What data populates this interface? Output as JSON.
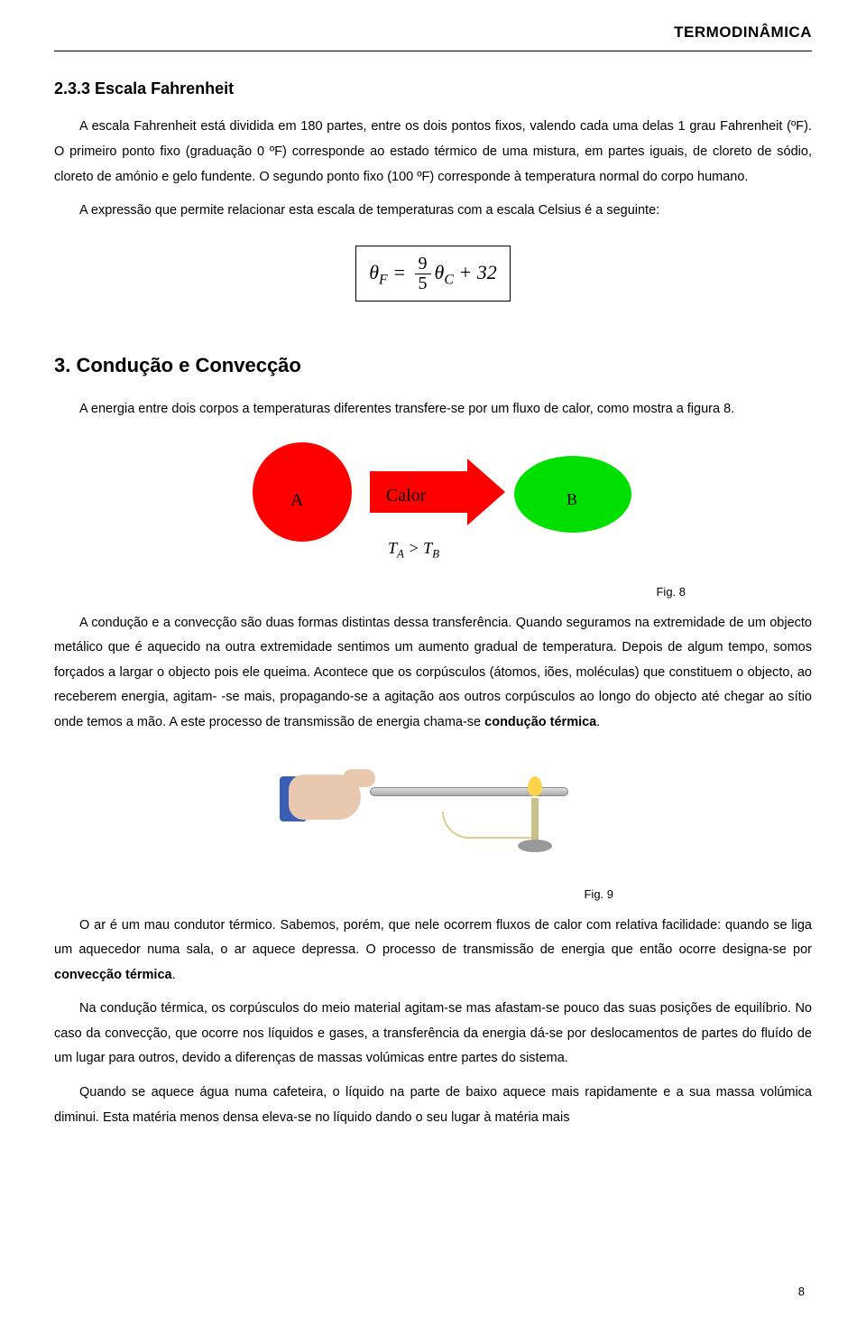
{
  "header": {
    "title": "TERMODINÂMICA"
  },
  "s233": {
    "heading": "2.3.3 Escala Fahrenheit",
    "p1": "A escala Fahrenheit está dividida em 180 partes, entre os dois pontos fixos, valendo cada uma delas 1 grau Fahrenheit (ºF). O primeiro ponto fixo (graduação 0 ºF) corresponde ao estado térmico de uma mistura, em partes iguais, de cloreto de sódio, cloreto de amónio e gelo fundente. O segundo ponto fixo (100 ºF) corresponde à temperatura normal do corpo humano.",
    "p2": "A expressão que permite relacionar esta escala de temperaturas com a escala Celsius é a seguinte:",
    "formula": {
      "lhs": "θ",
      "lhs_sub": "F",
      "eq": " = ",
      "num": "9",
      "den": "5",
      "rhs": "θ",
      "rhs_sub": "C",
      "tail": " + 32"
    }
  },
  "s3": {
    "heading": "3. Condução e Convecção",
    "p1": "A energia entre dois corpos a temperaturas diferentes transfere-se por um fluxo de calor, como mostra a figura 8.",
    "fig8": {
      "labelA": "A",
      "arrow_label": "Calor",
      "labelB": "B",
      "ineq": "T",
      "subA": "A",
      "gt": " > ",
      "subB": "B",
      "caption": "Fig. 8",
      "colors": {
        "red": "#ff0000",
        "green": "#00e000"
      }
    },
    "p2a": "A condução e a convecção são duas formas distintas dessa transferência. Quando seguramos na extremidade de um objecto metálico que é aquecido na outra extremidade sentimos um aumento gradual de temperatura. Depois de algum tempo, somos forçados a largar o objecto pois ele queima. Acontece que os corpúsculos (átomos, iões, moléculas) que constituem o objecto, ao receberem energia, agitam-  -se mais, propagando-se a agitação aos outros corpúsculos ao longo do objecto até chegar ao sítio onde temos a mão. A este processo de transmissão de energia chama-se ",
    "p2b_bold": "condução térmica",
    "p2c": ".",
    "fig9": {
      "caption": "Fig. 9",
      "colors": {
        "skin": "#e8c9b0",
        "cuff": "#3a5fb4",
        "flame": "#ffd24a"
      }
    },
    "p3a": "O ar é um mau condutor térmico. Sabemos, porém, que nele ocorrem fluxos de calor com relativa facilidade: quando se liga um aquecedor numa sala, o ar aquece depressa. O processo de transmissão de energia que então ocorre designa-se por ",
    "p3b_bold": "convecção térmica",
    "p3c": ".",
    "p4": "Na condução térmica, os corpúsculos do meio material agitam-se mas afastam-se pouco das suas posições de equilíbrio. No caso da convecção, que ocorre nos líquidos e gases, a transferência da energia dá-se por deslocamentos de partes do fluído de um lugar para outros, devido a diferenças de massas volúmicas entre partes do sistema.",
    "p5": "Quando se aquece água numa cafeteira, o líquido na parte de baixo aquece mais rapidamente e a sua massa volúmica diminui. Esta matéria menos densa eleva-se no líquido dando o seu lugar à matéria mais"
  },
  "page_number": "8"
}
